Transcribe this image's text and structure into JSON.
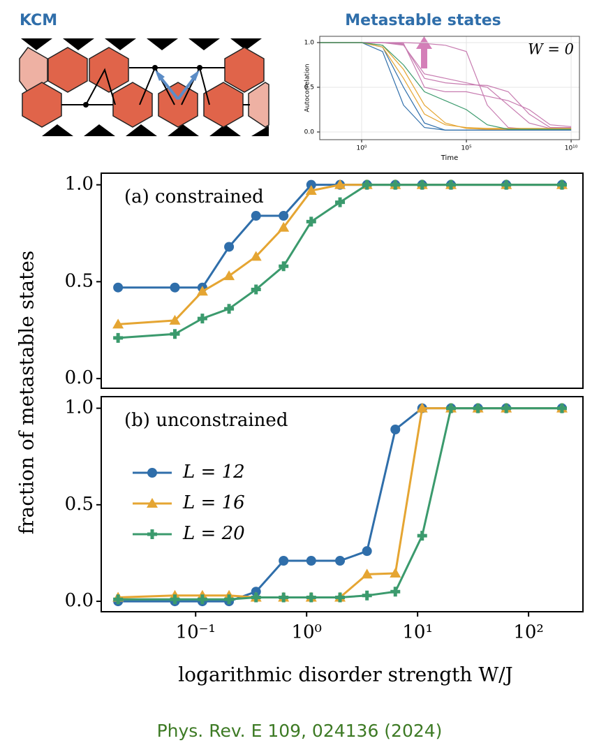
{
  "kcm_diagram": {
    "label": "KCM"
  },
  "chart_data": [
    {
      "type": "line",
      "title": "Metastable states",
      "annotation": "W = 0",
      "xlabel": "Time",
      "ylabel": "Autocorrelation",
      "xscale": "log",
      "grid": true,
      "x": [
        0.01,
        1,
        10,
        100,
        1000,
        10000,
        100000,
        1000000,
        10000000,
        100000000,
        1000000000,
        10000000000
      ],
      "xlim": [
        0.01,
        25000000000
      ],
      "ylim": [
        -0.086,
        1.07
      ],
      "xticks": [
        {
          "value": 1,
          "label": "10⁰"
        },
        {
          "value": 100000,
          "label": "10⁵"
        },
        {
          "value": 10000000000,
          "label": "10¹⁰"
        }
      ],
      "yticks": [
        {
          "value": 0,
          "label": "0.0"
        },
        {
          "value": 0.5,
          "label": "0.5"
        },
        {
          "value": 1,
          "label": "1.0"
        }
      ],
      "series": [
        {
          "color": "#c77bb0",
          "values": [
            1,
            1,
            1,
            0.98,
            0.6,
            0.55,
            0.53,
            0.52,
            0.45,
            0.2,
            0.05,
            0.05
          ]
        },
        {
          "color": "#c77bb0",
          "values": [
            1,
            1,
            1,
            0.97,
            0.65,
            0.6,
            0.55,
            0.5,
            0.3,
            0.1,
            0.04,
            0.04
          ]
        },
        {
          "color": "#c77bb0",
          "values": [
            1,
            1,
            1,
            1,
            0.99,
            0.97,
            0.9,
            0.3,
            0.05,
            0.03,
            0.03,
            0.03
          ]
        },
        {
          "color": "#c77bb0",
          "values": [
            1,
            1,
            1,
            0.99,
            0.5,
            0.45,
            0.45,
            0.4,
            0.35,
            0.25,
            0.08,
            0.06
          ]
        },
        {
          "color": "#2f6eaa",
          "values": [
            1,
            1,
            0.95,
            0.5,
            0.1,
            0.02,
            0.02,
            0.02,
            0.02,
            0.02,
            0.02,
            0.02
          ]
        },
        {
          "color": "#2f6eaa",
          "values": [
            1,
            1,
            0.9,
            0.3,
            0.05,
            0.02,
            0.02,
            0.02,
            0.02,
            0.02,
            0.02,
            0.02
          ]
        },
        {
          "color": "#e5a532",
          "values": [
            1,
            1,
            0.97,
            0.7,
            0.3,
            0.1,
            0.04,
            0.03,
            0.03,
            0.03,
            0.03,
            0.03
          ]
        },
        {
          "color": "#e5a532",
          "values": [
            1,
            1,
            0.95,
            0.6,
            0.2,
            0.08,
            0.05,
            0.04,
            0.04,
            0.04,
            0.04,
            0.04
          ]
        },
        {
          "color": "#3b9a6d",
          "values": [
            1,
            1,
            0.97,
            0.75,
            0.45,
            0.35,
            0.25,
            0.08,
            0.03,
            0.03,
            0.03,
            0.03
          ]
        }
      ]
    },
    {
      "type": "line",
      "title": "(a) constrained",
      "ylabel": "fraction of metastable states",
      "xscale": "log",
      "x": [
        0.02,
        0.065,
        0.115,
        0.2,
        0.35,
        0.62,
        1.1,
        2,
        3.5,
        6.3,
        11,
        20,
        63,
        200
      ],
      "xlim": [
        0.0141,
        309
      ],
      "ylim": [
        -0.05,
        1.06
      ],
      "yticks": [
        {
          "value": 0,
          "label": "0.0"
        },
        {
          "value": 0.5,
          "label": "0.5"
        },
        {
          "value": 1,
          "label": "1.0"
        }
      ],
      "series": [
        {
          "color": "#2f6eaa",
          "marker": "circle",
          "values": [
            0.47,
            0.47,
            0.47,
            0.68,
            0.84,
            0.84,
            1,
            1,
            1,
            1,
            1,
            1,
            1,
            1
          ]
        },
        {
          "color": "#e5a532",
          "marker": "triangle",
          "values": [
            0.28,
            0.3,
            0.45,
            0.53,
            0.63,
            0.78,
            0.97,
            1,
            1,
            1,
            1,
            1,
            1,
            1
          ]
        },
        {
          "color": "#3b9a6d",
          "marker": "plus",
          "values": [
            0.21,
            0.23,
            0.31,
            0.36,
            0.46,
            0.58,
            0.81,
            0.91,
            1,
            1,
            1,
            1,
            1,
            1
          ]
        }
      ]
    },
    {
      "type": "line",
      "title": "(b) unconstrained",
      "xlabel": "logarithmic disorder strength  W/J",
      "xscale": "log",
      "x": [
        0.02,
        0.065,
        0.115,
        0.2,
        0.35,
        0.62,
        1.1,
        2,
        3.5,
        6.3,
        11,
        20,
        35,
        63,
        200
      ],
      "xlim": [
        0.0141,
        309
      ],
      "ylim": [
        -0.054,
        1.06
      ],
      "xticks": [
        {
          "value": 0.1,
          "label": "10⁻¹"
        },
        {
          "value": 1,
          "label": "10⁰"
        },
        {
          "value": 10,
          "label": "10¹"
        },
        {
          "value": 100,
          "label": "10²"
        }
      ],
      "yticks": [
        {
          "value": 0,
          "label": "0.0"
        },
        {
          "value": 0.5,
          "label": "0.5"
        },
        {
          "value": 1,
          "label": "1.0"
        }
      ],
      "series": [
        {
          "name": "L = 12",
          "color": "#2f6eaa",
          "marker": "circle",
          "values": [
            0,
            0,
            0,
            0,
            0.05,
            0.21,
            0.21,
            0.21,
            0.26,
            0.89,
            1,
            1,
            1,
            1,
            1
          ]
        },
        {
          "name": "L = 16",
          "color": "#e5a532",
          "marker": "triangle",
          "values": [
            0.02,
            0.03,
            0.03,
            0.03,
            0.02,
            0.02,
            0.02,
            0.02,
            0.14,
            0.145,
            1,
            1,
            1,
            1,
            1
          ]
        },
        {
          "name": "L = 20",
          "color": "#3b9a6d",
          "marker": "plus",
          "values": [
            0.01,
            0.01,
            0.01,
            0.01,
            0.02,
            0.02,
            0.02,
            0.02,
            0.03,
            0.05,
            0.34,
            1,
            1,
            1,
            1
          ]
        }
      ]
    }
  ],
  "citation": "Phys. Rev. E 109, 024136 (2024)"
}
